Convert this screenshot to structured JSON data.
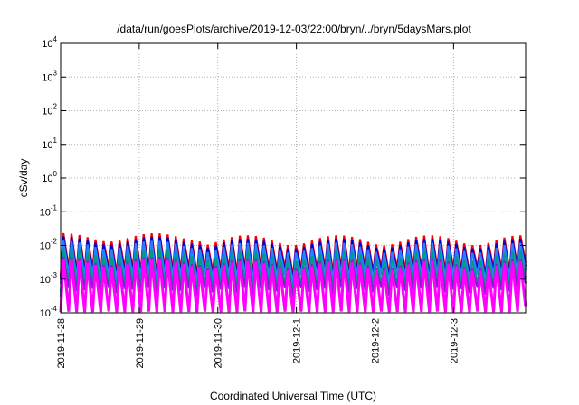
{
  "chart_data": {
    "type": "line",
    "title": "/data/run/goesPlots/archive/2019-12-03/22:00/bryn/../bryn/5daysMars.plot",
    "xlabel": "Coordinated Universal Time (UTC)",
    "ylabel": "cSv/day",
    "y_scale": "log",
    "ylim": [
      0.0001,
      10000
    ],
    "y_ticks": [
      {
        "base": "10",
        "exp": "-4",
        "value": 0.0001
      },
      {
        "base": "10",
        "exp": "-3",
        "value": 0.001
      },
      {
        "base": "10",
        "exp": "-2",
        "value": 0.01
      },
      {
        "base": "10",
        "exp": "-1",
        "value": 0.1
      },
      {
        "base": "10",
        "exp": "0",
        "value": 1
      },
      {
        "base": "10",
        "exp": "1",
        "value": 10
      },
      {
        "base": "10",
        "exp": "2",
        "value": 100
      },
      {
        "base": "10",
        "exp": "3",
        "value": 1000
      },
      {
        "base": "10",
        "exp": "4",
        "value": 10000
      }
    ],
    "x_ticks": [
      "2019-11-28",
      "2019-11-29",
      "2019-11-30",
      "2019-12-1",
      "2019-12-2",
      "2019-12-3"
    ],
    "xlim": [
      "2019-11-28 00:00",
      "2019-12-03 22:00"
    ],
    "grid": true,
    "legend": "none",
    "series": [
      {
        "color": "#ff0000",
        "min": 0.002,
        "max": 0.02
      },
      {
        "color": "#0000cc",
        "min": 0.0016,
        "max": 0.016
      },
      {
        "color": "#2a7fff",
        "min": 0.0012,
        "max": 0.012
      },
      {
        "color": "#009a8a",
        "min": 0.0007,
        "max": 0.007
      },
      {
        "color": "#7a22cc",
        "min": 0.0005,
        "max": 0.004
      },
      {
        "color": "#ff00ff",
        "min": 0.0001,
        "max": 0.0035
      }
    ]
  }
}
